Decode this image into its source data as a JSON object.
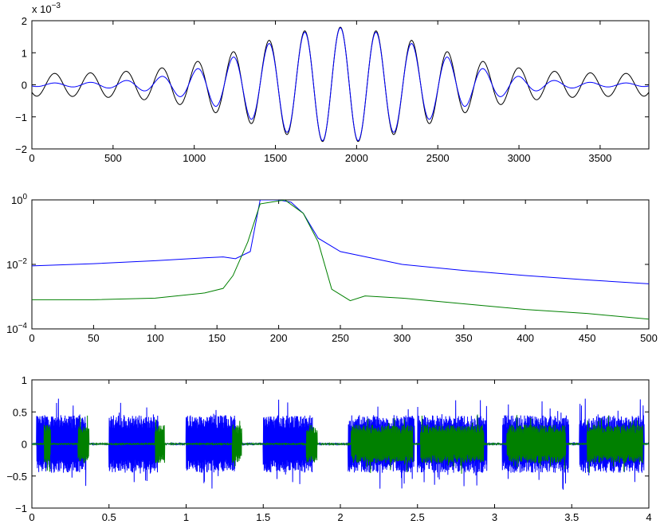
{
  "chart_data": [
    {
      "type": "line",
      "xlim": [
        0,
        3800
      ],
      "ylim": [
        -2,
        2
      ],
      "y_multiplier_label": "x 10",
      "y_multiplier_exponent": "−3",
      "x_ticks": [
        "0",
        "500",
        "1000",
        "1500",
        "2000",
        "2500",
        "3000",
        "3500"
      ],
      "x_tick_values": [
        0,
        500,
        1000,
        1500,
        2000,
        2500,
        3000,
        3500
      ],
      "y_ticks": [
        "−2",
        "−1",
        "0",
        "1",
        "2"
      ],
      "y_tick_values": [
        -2,
        -1,
        0,
        1,
        2
      ],
      "grid": false,
      "series": [
        {
          "color": "#000000",
          "function": "windowed-sinusoid",
          "center": 1900,
          "period": 220,
          "peak": 1.8,
          "floor": 0.35
        },
        {
          "color": "#0000ff",
          "function": "windowed-sinusoid",
          "center": 1900,
          "period": 220,
          "peak": 1.78,
          "floor": 0.05
        }
      ]
    },
    {
      "type": "line",
      "yscale": "log",
      "xlim": [
        0,
        500
      ],
      "ylim": [
        0.0001,
        1
      ],
      "x_ticks": [
        "0",
        "50",
        "100",
        "150",
        "200",
        "250",
        "300",
        "350",
        "400",
        "450",
        "500"
      ],
      "x_tick_values": [
        0,
        50,
        100,
        150,
        200,
        250,
        300,
        350,
        400,
        450,
        500
      ],
      "y_ticks": [
        {
          "base": "10",
          "exp": "0",
          "value": 1
        },
        {
          "base": "10",
          "exp": "−2",
          "value": 0.01
        },
        {
          "base": "10",
          "exp": "−4",
          "value": 0.0001
        }
      ],
      "grid": false,
      "series": [
        {
          "color": "#0000ff",
          "x": [
            0,
            50,
            100,
            140,
            155,
            165,
            177,
            185,
            200,
            210,
            220,
            232,
            250,
            300,
            350,
            400,
            450,
            500
          ],
          "y": [
            0.009,
            0.0105,
            0.013,
            0.016,
            0.017,
            0.015,
            0.025,
            1.0,
            1.0,
            0.85,
            0.38,
            0.065,
            0.025,
            0.01,
            0.0065,
            0.0045,
            0.0033,
            0.0025
          ]
        },
        {
          "color": "#008000",
          "x": [
            0,
            50,
            100,
            140,
            155,
            163,
            175,
            185,
            205,
            220,
            232,
            243,
            258,
            270,
            300,
            350,
            400,
            450,
            500
          ],
          "y": [
            0.0008,
            0.0008,
            0.0009,
            0.0013,
            0.0018,
            0.0045,
            0.05,
            0.75,
            1.0,
            0.38,
            0.05,
            0.0017,
            0.00075,
            0.00105,
            0.0009,
            0.0006,
            0.0004,
            0.0003,
            0.0002
          ]
        }
      ]
    },
    {
      "type": "line",
      "xlim": [
        0,
        4
      ],
      "ylim": [
        -1,
        1
      ],
      "x_ticks": [
        "0",
        "0.5",
        "1",
        "1.5",
        "2",
        "2.5",
        "3",
        "3.5",
        "4"
      ],
      "x_tick_values": [
        0,
        0.5,
        1,
        1.5,
        2,
        2.5,
        3,
        3.5,
        4
      ],
      "y_ticks": [
        "−1",
        "−0.5",
        "0",
        "0.5",
        "1"
      ],
      "y_tick_values": [
        -1,
        -0.5,
        0,
        0.5,
        1
      ],
      "grid": false,
      "series": [
        {
          "color": "#0000ff",
          "segments": [
            [
              0.03,
              0.35
            ],
            [
              0.5,
              0.82
            ],
            [
              1.0,
              1.32
            ],
            [
              1.5,
              1.82
            ],
            [
              2.05,
              2.48
            ],
            [
              2.5,
              2.95
            ],
            [
              3.05,
              3.48
            ],
            [
              3.55,
              3.97
            ]
          ],
          "amplitude": 0.45
        },
        {
          "color": "#008000",
          "segments": [
            [
              0.08,
              0.12
            ],
            [
              0.3,
              0.37
            ],
            [
              0.8,
              0.86
            ],
            [
              1.3,
              1.36
            ],
            [
              1.78,
              1.85
            ],
            [
              2.07,
              2.47
            ],
            [
              2.52,
              2.93
            ],
            [
              3.08,
              3.46
            ],
            [
              3.6,
              3.96
            ]
          ],
          "amplitude": 0.3
        }
      ]
    }
  ]
}
